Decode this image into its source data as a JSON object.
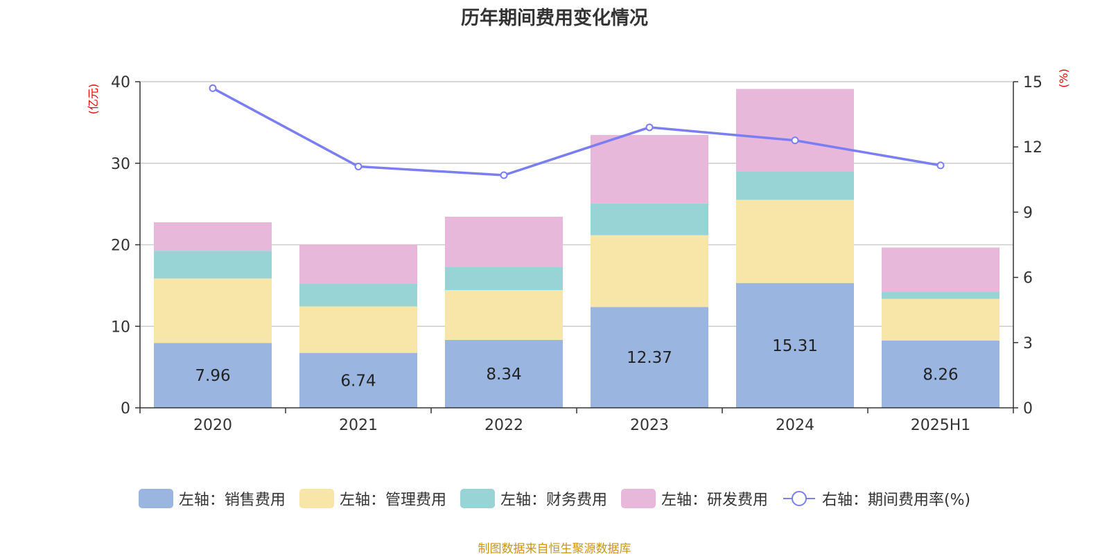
{
  "title": "历年期间费用变化情况",
  "source": "制图数据来自恒生聚源数据库",
  "colors": {
    "sales": "#9ab6e0",
    "admin": "#f8e6a8",
    "finance": "#98d4d5",
    "rnd": "#e7b8da",
    "rate": "#7b7ef0",
    "unit": "#e60000"
  },
  "chart_data": {
    "type": "bar",
    "stacked": true,
    "categories": [
      "2020",
      "2021",
      "2022",
      "2023",
      "2024",
      "2025H1"
    ],
    "series": [
      {
        "name": "左轴：销售费用",
        "axis": "left",
        "color_key": "sales",
        "values": [
          7.96,
          6.74,
          8.34,
          12.37,
          15.31,
          8.26
        ],
        "show_labels": true
      },
      {
        "name": "左轴：管理费用",
        "axis": "left",
        "color_key": "admin",
        "values": [
          7.9,
          5.7,
          6.1,
          8.8,
          10.2,
          5.1
        ]
      },
      {
        "name": "左轴：财务费用",
        "axis": "left",
        "color_key": "finance",
        "values": [
          3.4,
          2.8,
          2.8,
          3.9,
          3.5,
          0.9
        ]
      },
      {
        "name": "左轴：研发费用",
        "axis": "left",
        "color_key": "rnd",
        "values": [
          3.5,
          4.8,
          6.2,
          8.4,
          10.1,
          5.4
        ]
      },
      {
        "name": "右轴：期间费用率(%)",
        "type": "line",
        "axis": "right",
        "color_key": "rate",
        "values": [
          14.7,
          11.1,
          10.7,
          12.9,
          12.3,
          11.15
        ]
      }
    ],
    "y_left": {
      "label": "(亿元)",
      "min": 0,
      "max": 40,
      "ticks": [
        0,
        10,
        20,
        30,
        40
      ]
    },
    "y_right": {
      "label": "(%)",
      "min": 0,
      "max": 15,
      "ticks": [
        0,
        3,
        6,
        9,
        12,
        15
      ]
    },
    "grid": true,
    "legend_position": "bottom"
  }
}
